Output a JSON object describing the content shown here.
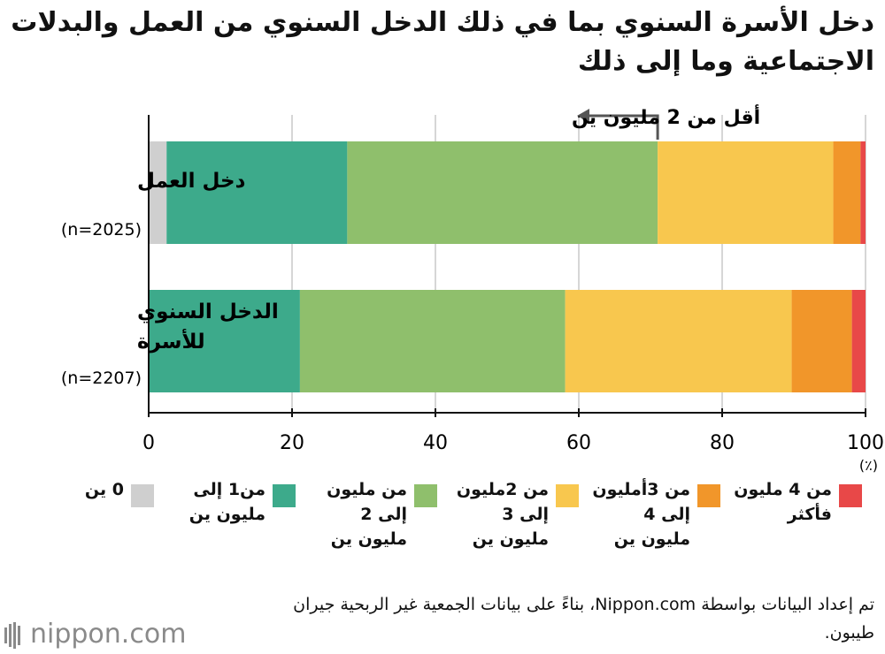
{
  "title": "دخل الأسرة السنوي بما في ذلك الدخل السنوي من العمل والبدلات الاجتماعية وما إلى ذلك",
  "annotation": "أقل من 2 مليون ين",
  "unit": "(٪)",
  "source": "تم إعداد البيانات بواسطة Nippon.com، بناءً على بيانات الجمعية غير الربحية جيران طيبون.",
  "logo": "nippon.com",
  "colors": {
    "grid": "#c8c8c8",
    "axis": "#111111",
    "annotation": "#555555"
  },
  "legend": [
    {
      "label": "0 ين",
      "color": "#cfcfcf"
    },
    {
      "label": "من1 إلى\nمليون  ين",
      "color": "#3daa8b"
    },
    {
      "label": "من مليون\nإلى 2\nمليون ين",
      "color": "#8fbf6c"
    },
    {
      "label": "من 2مليون\nإلى 3\nمليون ين",
      "color": "#f8c74e"
    },
    {
      "label": "من 3أمليون\nإلى 4\nمليون ين",
      "color": "#f1962a"
    },
    {
      "label": "من 4 مليون\nفأكثر",
      "color": "#e84848"
    }
  ],
  "chart_data": {
    "type": "bar",
    "orientation": "horizontal",
    "stacked": true,
    "xlim": [
      0,
      100
    ],
    "xticks": [
      "0",
      "20",
      "40",
      "60",
      "80",
      "100"
    ],
    "grid": true,
    "categories": [
      {
        "label": "دخل العمل",
        "n": "(n=2025)"
      },
      {
        "label": "الدخل السنوي\nللأسرة",
        "n": "(n=2207)"
      }
    ],
    "series": [
      {
        "name": "0 ين",
        "values": [
          2.5,
          0.0
        ]
      },
      {
        "name": "من1 إلى مليون  ين",
        "values": [
          25.2,
          21.1
        ]
      },
      {
        "name": "من مليون إلى 2 مليون ين",
        "values": [
          43.3,
          37.0
        ]
      },
      {
        "name": "من 2مليون إلى 3 مليون ين",
        "values": [
          24.5,
          31.6
        ]
      },
      {
        "name": "من 3أمليون إلى 4 مليون ين",
        "values": [
          3.8,
          8.4
        ]
      },
      {
        "name": "من 4 مليون فأكثر",
        "values": [
          0.7,
          1.9
        ]
      }
    ],
    "annotation_at": 71.0
  }
}
